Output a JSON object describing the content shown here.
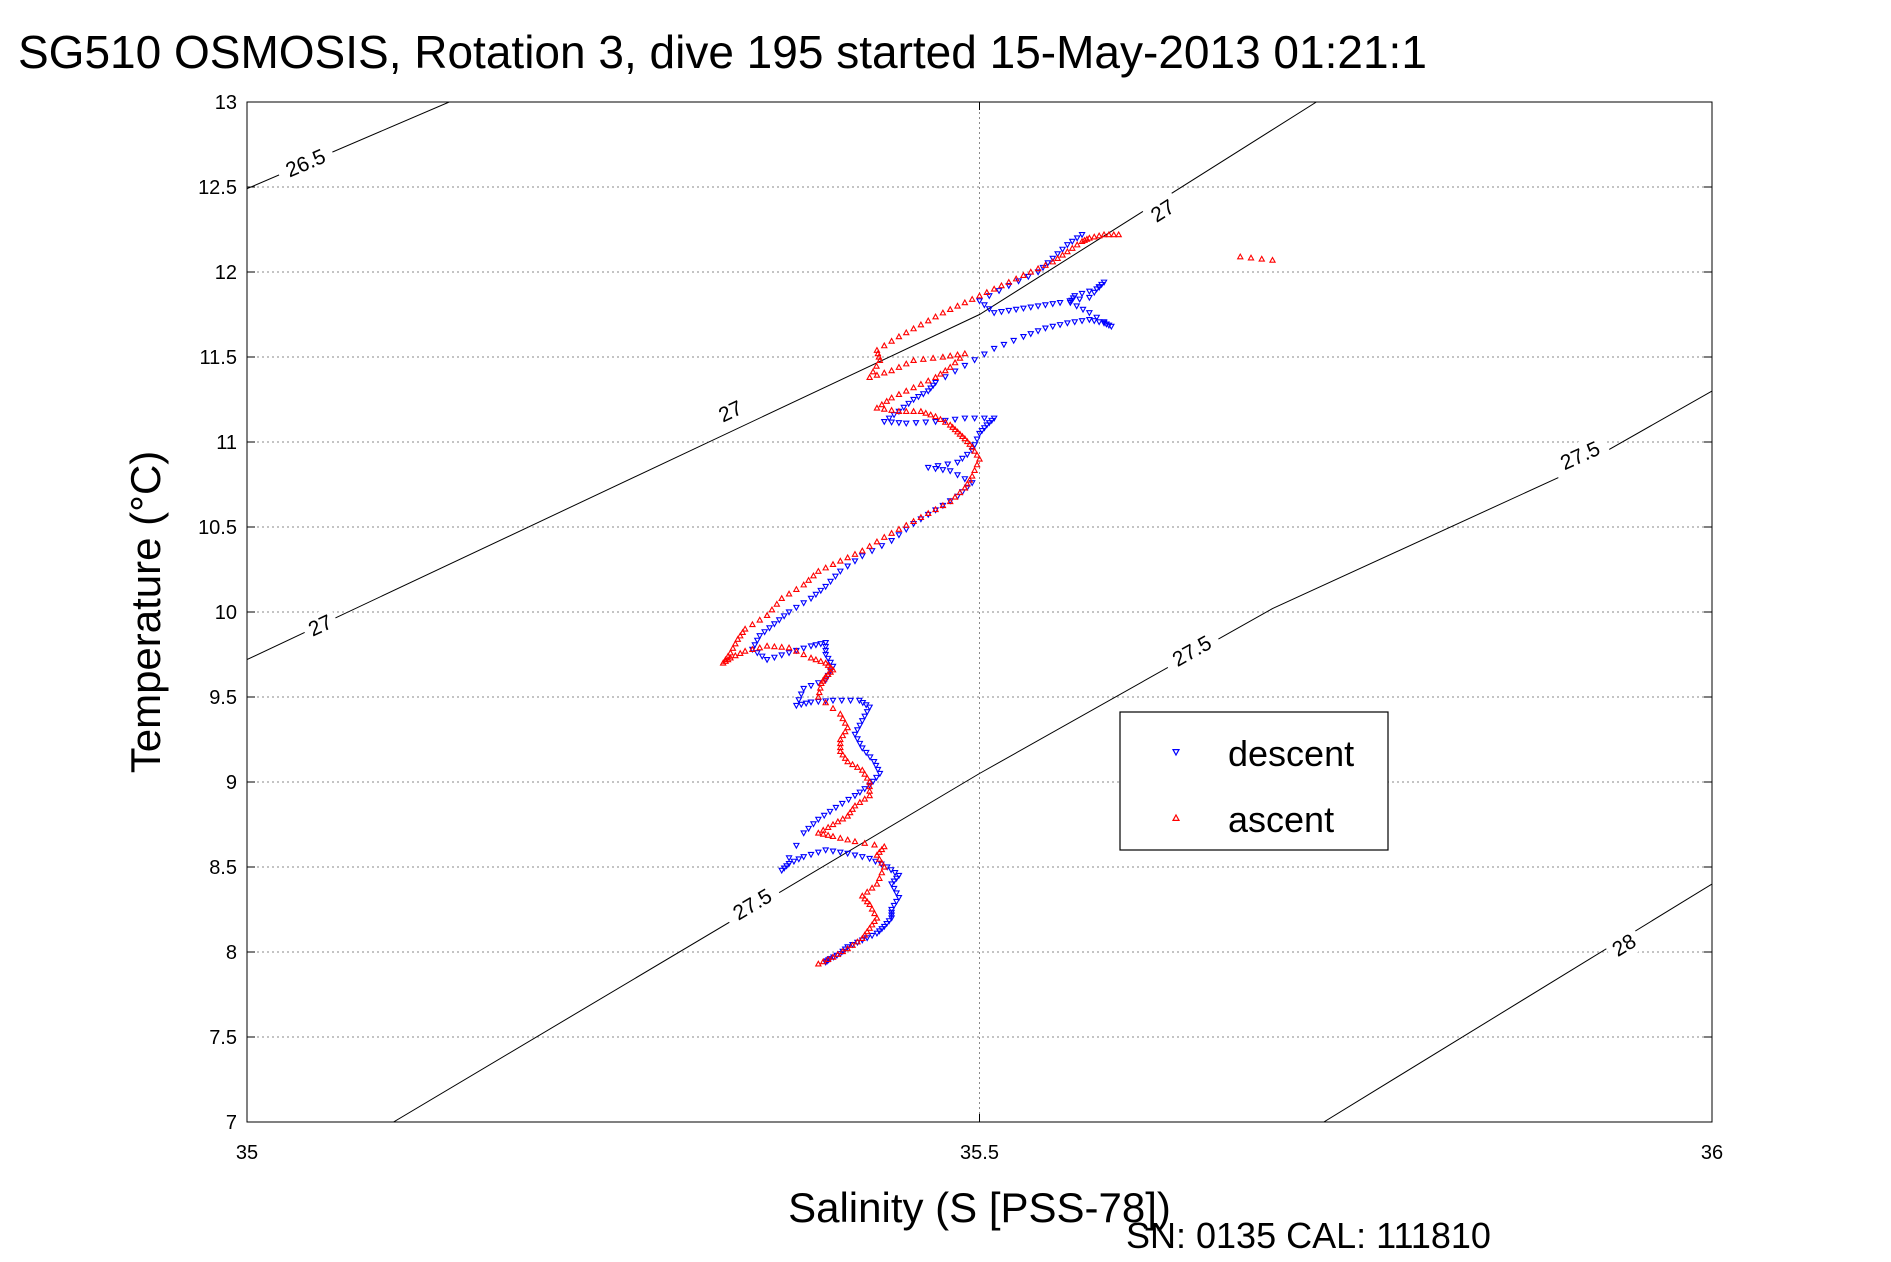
{
  "figure": {
    "title": "SG510 OSMOSIS, Rotation 3, dive 195 started 15-May-2013 01:21:1",
    "footer": "SN: 0135  CAL: 111810"
  },
  "chart_data": {
    "type": "scatter",
    "title": "SG510 OSMOSIS, Rotation 3, dive 195 started 15-May-2013 01:21:1",
    "xlabel": "Salinity (S [PSS-78])",
    "ylabel": "Temperature (°C)",
    "xlim": [
      35,
      36
    ],
    "ylim": [
      7,
      13
    ],
    "x_ticks": [
      {
        "value": 35,
        "label": "35"
      },
      {
        "value": 35.5,
        "label": "35.5"
      },
      {
        "value": 36,
        "label": "36"
      }
    ],
    "y_ticks": [
      {
        "value": 7,
        "label": "7"
      },
      {
        "value": 7.5,
        "label": "7.5"
      },
      {
        "value": 8,
        "label": "8"
      },
      {
        "value": 8.5,
        "label": "8.5"
      },
      {
        "value": 9,
        "label": "9"
      },
      {
        "value": 9.5,
        "label": "9.5"
      },
      {
        "value": 10,
        "label": "10"
      },
      {
        "value": 10.5,
        "label": "10.5"
      },
      {
        "value": 11,
        "label": "11"
      },
      {
        "value": 11.5,
        "label": "11.5"
      },
      {
        "value": 12,
        "label": "12"
      },
      {
        "value": 12.5,
        "label": "12.5"
      },
      {
        "value": 13,
        "label": "13"
      }
    ],
    "grid": true,
    "legend": {
      "position": "center-right",
      "entries": [
        "descent",
        "ascent"
      ]
    },
    "density_contours": [
      {
        "label": "26.5",
        "points": [
          [
            35.0,
            12.49
          ],
          [
            35.138,
            13.0
          ]
        ],
        "labels_at": [
          [
            35.04,
            12.64
          ]
        ]
      },
      {
        "label": "27",
        "points": [
          [
            35.0,
            9.72
          ],
          [
            35.5,
            11.75
          ],
          [
            35.73,
            13.0
          ]
        ],
        "labels_at": [
          [
            35.05,
            9.92
          ],
          [
            35.33,
            11.18
          ],
          [
            35.625,
            12.36
          ]
        ]
      },
      {
        "label": "27.5",
        "points": [
          [
            35.1,
            7.0
          ],
          [
            35.5,
            9.05
          ],
          [
            35.7,
            10.02
          ],
          [
            35.9,
            10.81
          ],
          [
            36.0,
            11.3
          ]
        ],
        "labels_at": [
          [
            35.345,
            8.28
          ],
          [
            35.645,
            9.77
          ],
          [
            35.91,
            10.92
          ]
        ]
      },
      {
        "label": "28",
        "points": [
          [
            35.735,
            7.0
          ],
          [
            36.0,
            8.4
          ]
        ],
        "labels_at": [
          [
            35.94,
            8.04
          ]
        ]
      }
    ],
    "series": [
      {
        "name": "descent",
        "color": "#0000ff",
        "marker": "triangle-down",
        "points": [
          [
            35.395,
            7.94
          ],
          [
            35.398,
            7.96
          ],
          [
            35.405,
            7.99
          ],
          [
            35.41,
            8.03
          ],
          [
            35.42,
            8.07
          ],
          [
            35.43,
            8.11
          ],
          [
            35.435,
            8.15
          ],
          [
            35.44,
            8.2
          ],
          [
            35.44,
            8.25
          ],
          [
            35.445,
            8.32
          ],
          [
            35.44,
            8.4
          ],
          [
            35.445,
            8.45
          ],
          [
            35.437,
            8.5
          ],
          [
            35.425,
            8.55
          ],
          [
            35.41,
            8.58
          ],
          [
            35.395,
            8.6
          ],
          [
            35.38,
            8.56
          ],
          [
            35.37,
            8.52
          ],
          [
            35.365,
            8.48
          ],
          [
            35.38,
            8.7
          ],
          [
            35.39,
            8.78
          ],
          [
            35.402,
            8.85
          ],
          [
            35.415,
            8.92
          ],
          [
            35.425,
            8.98
          ],
          [
            35.432,
            9.05
          ],
          [
            35.428,
            9.12
          ],
          [
            35.42,
            9.2
          ],
          [
            35.415,
            9.28
          ],
          [
            35.42,
            9.36
          ],
          [
            35.425,
            9.44
          ],
          [
            35.418,
            9.48
          ],
          [
            35.4,
            9.48
          ],
          [
            35.385,
            9.47
          ],
          [
            35.375,
            9.45
          ],
          [
            35.38,
            9.55
          ],
          [
            35.395,
            9.6
          ],
          [
            35.4,
            9.68
          ],
          [
            35.395,
            9.75
          ],
          [
            35.395,
            9.82
          ],
          [
            35.385,
            9.8
          ],
          [
            35.37,
            9.76
          ],
          [
            35.355,
            9.72
          ],
          [
            35.345,
            9.78
          ],
          [
            35.35,
            9.86
          ],
          [
            35.36,
            9.93
          ],
          [
            35.37,
            10.0
          ],
          [
            35.385,
            10.08
          ],
          [
            35.395,
            10.15
          ],
          [
            35.405,
            10.24
          ],
          [
            35.42,
            10.33
          ],
          [
            35.44,
            10.42
          ],
          [
            35.455,
            10.52
          ],
          [
            35.47,
            10.6
          ],
          [
            35.485,
            10.68
          ],
          [
            35.495,
            10.76
          ],
          [
            35.48,
            10.83
          ],
          [
            35.465,
            10.85
          ],
          [
            35.485,
            10.88
          ],
          [
            35.495,
            10.95
          ],
          [
            35.5,
            11.05
          ],
          [
            35.505,
            11.1
          ],
          [
            35.51,
            11.14
          ],
          [
            35.49,
            11.14
          ],
          [
            35.47,
            11.12
          ],
          [
            35.45,
            11.11
          ],
          [
            35.435,
            11.12
          ],
          [
            35.445,
            11.18
          ],
          [
            35.455,
            11.25
          ],
          [
            35.465,
            11.3
          ],
          [
            35.47,
            11.35
          ],
          [
            35.49,
            11.45
          ],
          [
            35.51,
            11.55
          ],
          [
            35.53,
            11.62
          ],
          [
            35.545,
            11.67
          ],
          [
            35.56,
            11.7
          ],
          [
            35.575,
            11.72
          ],
          [
            35.585,
            11.7
          ],
          [
            35.59,
            11.68
          ],
          [
            35.575,
            11.76
          ],
          [
            35.562,
            11.82
          ],
          [
            35.565,
            11.86
          ],
          [
            35.58,
            11.9
          ],
          [
            35.585,
            11.94
          ],
          [
            35.575,
            11.85
          ],
          [
            35.555,
            11.82
          ],
          [
            35.54,
            11.8
          ],
          [
            35.525,
            11.78
          ],
          [
            35.51,
            11.76
          ],
          [
            35.5,
            11.83
          ],
          [
            35.52,
            11.92
          ],
          [
            35.54,
            12.0
          ],
          [
            35.55,
            12.08
          ],
          [
            35.56,
            12.16
          ],
          [
            35.57,
            12.22
          ]
        ]
      },
      {
        "name": "ascent",
        "color": "#ff0000",
        "marker": "triangle-up",
        "points": [
          [
            35.39,
            7.93
          ],
          [
            35.4,
            7.97
          ],
          [
            35.41,
            8.02
          ],
          [
            35.42,
            8.08
          ],
          [
            35.425,
            8.14
          ],
          [
            35.43,
            8.2
          ],
          [
            35.425,
            8.28
          ],
          [
            35.42,
            8.33
          ],
          [
            35.43,
            8.4
          ],
          [
            35.435,
            8.5
          ],
          [
            35.43,
            8.57
          ],
          [
            35.435,
            8.62
          ],
          [
            35.415,
            8.65
          ],
          [
            35.4,
            8.68
          ],
          [
            35.39,
            8.7
          ],
          [
            35.4,
            8.75
          ],
          [
            35.41,
            8.8
          ],
          [
            35.415,
            8.86
          ],
          [
            35.425,
            8.92
          ],
          [
            35.425,
            9.0
          ],
          [
            35.42,
            9.07
          ],
          [
            35.41,
            9.12
          ],
          [
            35.405,
            9.18
          ],
          [
            35.405,
            9.25
          ],
          [
            35.41,
            9.32
          ],
          [
            35.405,
            9.4
          ],
          [
            35.39,
            9.5
          ],
          [
            35.392,
            9.58
          ],
          [
            35.395,
            9.62
          ],
          [
            35.4,
            9.66
          ],
          [
            35.395,
            9.7
          ],
          [
            35.385,
            9.73
          ],
          [
            35.37,
            9.79
          ],
          [
            35.355,
            9.8
          ],
          [
            35.34,
            9.77
          ],
          [
            35.33,
            9.73
          ],
          [
            35.325,
            9.7
          ],
          [
            35.33,
            9.76
          ],
          [
            35.335,
            9.84
          ],
          [
            35.34,
            9.9
          ],
          [
            35.355,
            9.98
          ],
          [
            35.365,
            10.08
          ],
          [
            35.38,
            10.16
          ],
          [
            35.39,
            10.24
          ],
          [
            35.405,
            10.3
          ],
          [
            35.42,
            10.36
          ],
          [
            35.435,
            10.44
          ],
          [
            35.45,
            10.51
          ],
          [
            35.465,
            10.58
          ],
          [
            35.48,
            10.65
          ],
          [
            35.49,
            10.73
          ],
          [
            35.495,
            10.8
          ],
          [
            35.5,
            10.9
          ],
          [
            35.495,
            10.97
          ],
          [
            35.49,
            11.02
          ],
          [
            35.485,
            11.06
          ],
          [
            35.48,
            11.1
          ],
          [
            35.47,
            11.15
          ],
          [
            35.46,
            11.18
          ],
          [
            35.445,
            11.18
          ],
          [
            35.43,
            11.2
          ],
          [
            35.44,
            11.26
          ],
          [
            35.455,
            11.32
          ],
          [
            35.47,
            11.38
          ],
          [
            35.48,
            11.44
          ],
          [
            35.49,
            11.52
          ],
          [
            35.475,
            11.5
          ],
          [
            35.455,
            11.48
          ],
          [
            35.44,
            11.42
          ],
          [
            35.425,
            11.38
          ],
          [
            35.432,
            11.48
          ],
          [
            35.43,
            11.54
          ],
          [
            35.445,
            11.62
          ],
          [
            35.46,
            11.69
          ],
          [
            35.475,
            11.76
          ],
          [
            35.49,
            11.82
          ],
          [
            35.505,
            11.88
          ],
          [
            35.52,
            11.94
          ],
          [
            35.535,
            12.0
          ],
          [
            35.55,
            12.06
          ],
          [
            35.56,
            12.12
          ],
          [
            35.57,
            12.18
          ],
          [
            35.575,
            12.2
          ],
          [
            35.585,
            12.22
          ],
          [
            35.595,
            12.22
          ],
          [
            35.678,
            12.09
          ],
          [
            35.7,
            12.07
          ]
        ]
      }
    ]
  }
}
